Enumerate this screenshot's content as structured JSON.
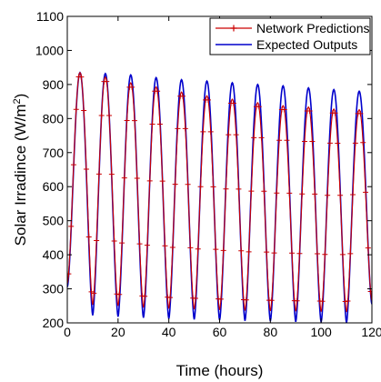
{
  "chart_data": {
    "type": "line",
    "xlabel": "Time (hours)",
    "ylabel_main": "Solar Irradince (W/m",
    "ylabel_sup": "2",
    "ylabel_close": ")",
    "xlim": [
      0,
      120
    ],
    "ylim": [
      200,
      1100
    ],
    "xticks": [
      "0",
      "20",
      "40",
      "60",
      "80",
      "100",
      "120"
    ],
    "yticks": [
      "200",
      "300",
      "400",
      "500",
      "600",
      "700",
      "800",
      "900",
      "1000",
      "1100"
    ],
    "legend_position": "top-right",
    "grid": false,
    "period_hours": 10,
    "series": [
      {
        "name": "Network Predictions",
        "color": "#cc0000",
        "marker": "plus",
        "peaks": [
          935,
          922,
          905,
          893,
          878,
          867,
          857,
          847,
          838,
          834,
          828,
          826
        ],
        "troughs": [
          315,
          253,
          250,
          245,
          242,
          240,
          238,
          236,
          235,
          234,
          233,
          232,
          265
        ]
      },
      {
        "name": "Expected Outputs",
        "color": "#0000cc",
        "marker": "none",
        "peaks": [
          935,
          932,
          928,
          920,
          914,
          910,
          905,
          900,
          896,
          890,
          885,
          880
        ],
        "troughs": [
          305,
          222,
          218,
          215,
          212,
          210,
          208,
          206,
          205,
          203,
          202,
          200,
          255
        ]
      }
    ]
  }
}
